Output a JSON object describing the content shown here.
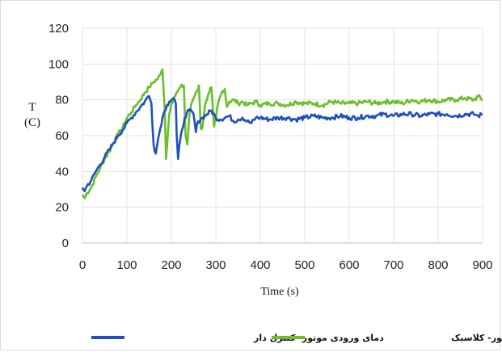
{
  "chart_data": {
    "type": "line",
    "xlabel": "Time (s)",
    "ylabel_line1": "T",
    "ylabel_line2": "(C)",
    "xlim": [
      0,
      900
    ],
    "ylim": [
      0,
      120
    ],
    "xticks": [
      0,
      100,
      200,
      300,
      400,
      500,
      600,
      700,
      800,
      900
    ],
    "yticks": [
      0,
      20,
      40,
      60,
      80,
      100,
      120
    ],
    "grid": "horizontal-and-vertical",
    "legend_position": "bottom",
    "series": [
      {
        "name": "دمای ورودی موتور- کلاسیک",
        "color": "#6bbf2a",
        "x": [
          0,
          5,
          10,
          20,
          30,
          40,
          50,
          60,
          70,
          80,
          90,
          100,
          110,
          120,
          130,
          140,
          150,
          160,
          170,
          175,
          180,
          185,
          188,
          195,
          200,
          205,
          210,
          215,
          220,
          228,
          232,
          236,
          240,
          245,
          250,
          255,
          262,
          266,
          270,
          275,
          280,
          285,
          290,
          296,
          300,
          305,
          310,
          315,
          320,
          325,
          330,
          340,
          350,
          360,
          370,
          380,
          390,
          400,
          420,
          440,
          460,
          480,
          500,
          520,
          540,
          560,
          580,
          600,
          620,
          640,
          660,
          680,
          700,
          720,
          740,
          760,
          780,
          800,
          820,
          840,
          860,
          880,
          890,
          900
        ],
        "y": [
          27,
          25,
          28,
          31,
          37,
          42,
          47,
          51,
          56,
          61,
          64,
          70,
          73,
          77,
          80,
          84,
          87,
          90,
          92,
          94,
          97,
          75,
          47,
          72,
          78,
          81,
          83,
          85,
          87,
          88,
          60,
          55,
          70,
          78,
          81,
          84,
          88,
          64,
          65,
          76,
          80,
          84,
          87,
          65,
          70,
          78,
          82,
          85,
          86,
          76,
          79,
          80,
          78,
          79,
          77,
          78,
          79,
          77,
          78,
          78,
          77,
          79,
          78,
          78,
          77,
          79,
          78,
          78,
          78,
          79,
          78,
          79,
          79,
          78,
          80,
          79,
          80,
          79,
          80,
          80,
          81,
          80,
          82,
          80
        ]
      },
      {
        "name": "دمای ورودی موتور- کنترل دار",
        "color": "#1f4fbf",
        "x": [
          0,
          5,
          10,
          20,
          30,
          40,
          50,
          60,
          70,
          80,
          90,
          100,
          110,
          120,
          130,
          140,
          145,
          150,
          155,
          160,
          165,
          170,
          175,
          180,
          185,
          190,
          195,
          200,
          205,
          210,
          212,
          215,
          220,
          225,
          230,
          235,
          240,
          250,
          255,
          260,
          270,
          280,
          290,
          300,
          310,
          320,
          330,
          340,
          350,
          360,
          370,
          380,
          390,
          400,
          420,
          440,
          460,
          480,
          500,
          520,
          540,
          560,
          580,
          600,
          620,
          640,
          660,
          680,
          700,
          720,
          740,
          760,
          780,
          800,
          820,
          840,
          860,
          880,
          890,
          900
        ],
        "y": [
          31,
          29,
          32,
          35,
          40,
          44,
          48,
          52,
          56,
          60,
          63,
          67,
          70,
          73,
          76,
          79,
          81,
          82,
          78,
          55,
          50,
          58,
          64,
          70,
          74,
          77,
          79,
          80,
          81,
          78,
          60,
          47,
          58,
          64,
          70,
          73,
          74,
          72,
          62,
          68,
          70,
          72,
          74,
          70,
          69,
          70,
          71,
          68,
          69,
          70,
          68,
          67,
          70,
          70,
          69,
          70,
          70,
          69,
          70,
          71,
          70,
          70,
          71,
          70,
          70,
          71,
          71,
          72,
          71,
          72,
          72,
          71,
          72,
          72,
          72,
          71,
          72,
          72,
          71,
          72
        ]
      }
    ]
  },
  "legend": {
    "entries": [
      {
        "label": "دمای ورودی موتور- کنترل دار",
        "color": "#1f4fbf"
      },
      {
        "label": "دمای ورودی موتور- کلاسیک",
        "color": "#6bbf2a"
      }
    ]
  }
}
